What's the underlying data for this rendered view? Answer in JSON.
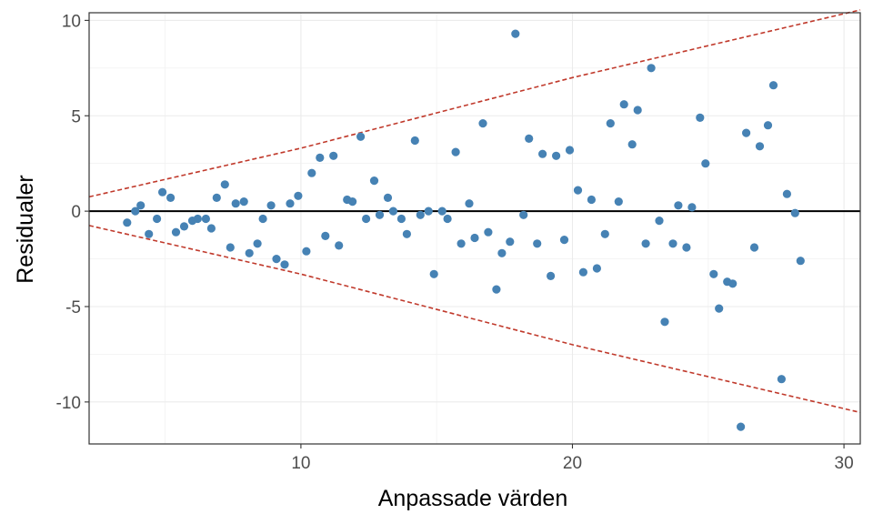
{
  "chart_data": {
    "type": "scatter",
    "xlabel": "Anpassade värden",
    "ylabel": "Residualer",
    "xlim": [
      2.2,
      30.6
    ],
    "ylim": [
      -12.2,
      10.4
    ],
    "x_ticks": [
      10,
      20,
      30
    ],
    "y_ticks": [
      10,
      5,
      0,
      -5,
      -10
    ],
    "x_tick_labels": [
      "10",
      "20",
      "30"
    ],
    "y_tick_labels": [
      "10",
      "5",
      "0",
      "-5",
      "-10"
    ],
    "grid": true,
    "reference_line": {
      "y": 0,
      "color": "#000000"
    },
    "bands": {
      "color": "#c0392b",
      "style": "dashed",
      "upper": [
        [
          2.2,
          0.75
        ],
        [
          10.0,
          3.3
        ],
        [
          20.0,
          7.0
        ],
        [
          30.6,
          10.55
        ]
      ],
      "lower": [
        [
          2.2,
          -0.75
        ],
        [
          10.0,
          -3.3
        ],
        [
          20.0,
          -7.0
        ],
        [
          30.6,
          -10.55
        ]
      ]
    },
    "point_color": "#4682b4",
    "points": [
      [
        3.6,
        -0.6
      ],
      [
        3.9,
        0.0
      ],
      [
        4.1,
        0.3
      ],
      [
        4.4,
        -1.2
      ],
      [
        4.7,
        -0.4
      ],
      [
        4.9,
        1.0
      ],
      [
        5.2,
        0.7
      ],
      [
        5.4,
        -1.1
      ],
      [
        5.7,
        -0.8
      ],
      [
        6.0,
        -0.5
      ],
      [
        6.2,
        -0.4
      ],
      [
        6.5,
        -0.4
      ],
      [
        6.7,
        -0.9
      ],
      [
        6.9,
        0.7
      ],
      [
        7.2,
        1.4
      ],
      [
        7.4,
        -1.9
      ],
      [
        7.6,
        0.4
      ],
      [
        7.9,
        0.5
      ],
      [
        8.1,
        -2.2
      ],
      [
        8.4,
        -1.7
      ],
      [
        8.6,
        -0.4
      ],
      [
        8.9,
        0.3
      ],
      [
        9.1,
        -2.5
      ],
      [
        9.4,
        -2.8
      ],
      [
        9.6,
        0.4
      ],
      [
        9.9,
        0.8
      ],
      [
        10.2,
        -2.1
      ],
      [
        10.4,
        2.0
      ],
      [
        10.7,
        2.8
      ],
      [
        10.9,
        -1.3
      ],
      [
        11.2,
        2.9
      ],
      [
        11.4,
        -1.8
      ],
      [
        11.7,
        0.6
      ],
      [
        11.9,
        0.5
      ],
      [
        12.2,
        3.9
      ],
      [
        12.4,
        -0.4
      ],
      [
        12.7,
        1.6
      ],
      [
        12.9,
        -0.2
      ],
      [
        13.2,
        0.7
      ],
      [
        13.4,
        0.0
      ],
      [
        13.7,
        -0.4
      ],
      [
        13.9,
        -1.2
      ],
      [
        14.2,
        3.7
      ],
      [
        14.4,
        -0.2
      ],
      [
        14.7,
        0.0
      ],
      [
        14.9,
        -3.3
      ],
      [
        15.2,
        0.0
      ],
      [
        15.4,
        -0.4
      ],
      [
        15.7,
        3.1
      ],
      [
        15.9,
        -1.7
      ],
      [
        16.2,
        0.4
      ],
      [
        16.4,
        -1.4
      ],
      [
        16.7,
        4.6
      ],
      [
        16.9,
        -1.1
      ],
      [
        17.2,
        -4.1
      ],
      [
        17.4,
        -2.2
      ],
      [
        17.7,
        -1.6
      ],
      [
        17.9,
        9.3
      ],
      [
        18.2,
        -0.2
      ],
      [
        18.4,
        3.8
      ],
      [
        18.7,
        -1.7
      ],
      [
        18.9,
        3.0
      ],
      [
        19.2,
        -3.4
      ],
      [
        19.4,
        2.9
      ],
      [
        19.7,
        -1.5
      ],
      [
        19.9,
        3.2
      ],
      [
        20.2,
        1.1
      ],
      [
        20.4,
        -3.2
      ],
      [
        20.7,
        0.6
      ],
      [
        20.9,
        -3.0
      ],
      [
        21.2,
        -1.2
      ],
      [
        21.4,
        4.6
      ],
      [
        21.7,
        0.5
      ],
      [
        21.9,
        5.6
      ],
      [
        22.2,
        3.5
      ],
      [
        22.4,
        5.3
      ],
      [
        22.7,
        -1.7
      ],
      [
        22.9,
        7.5
      ],
      [
        23.2,
        -0.5
      ],
      [
        23.4,
        -5.8
      ],
      [
        23.7,
        -1.7
      ],
      [
        23.9,
        0.3
      ],
      [
        24.2,
        -1.9
      ],
      [
        24.4,
        0.2
      ],
      [
        24.7,
        4.9
      ],
      [
        24.9,
        2.5
      ],
      [
        25.2,
        -3.3
      ],
      [
        25.4,
        -5.1
      ],
      [
        25.7,
        -3.7
      ],
      [
        25.9,
        -3.8
      ],
      [
        26.2,
        -11.3
      ],
      [
        26.4,
        4.1
      ],
      [
        26.7,
        -1.9
      ],
      [
        26.9,
        3.4
      ],
      [
        27.2,
        4.5
      ],
      [
        27.4,
        6.6
      ],
      [
        27.7,
        -8.8
      ],
      [
        27.9,
        0.9
      ],
      [
        28.2,
        -0.1
      ],
      [
        28.4,
        -2.6
      ]
    ]
  }
}
